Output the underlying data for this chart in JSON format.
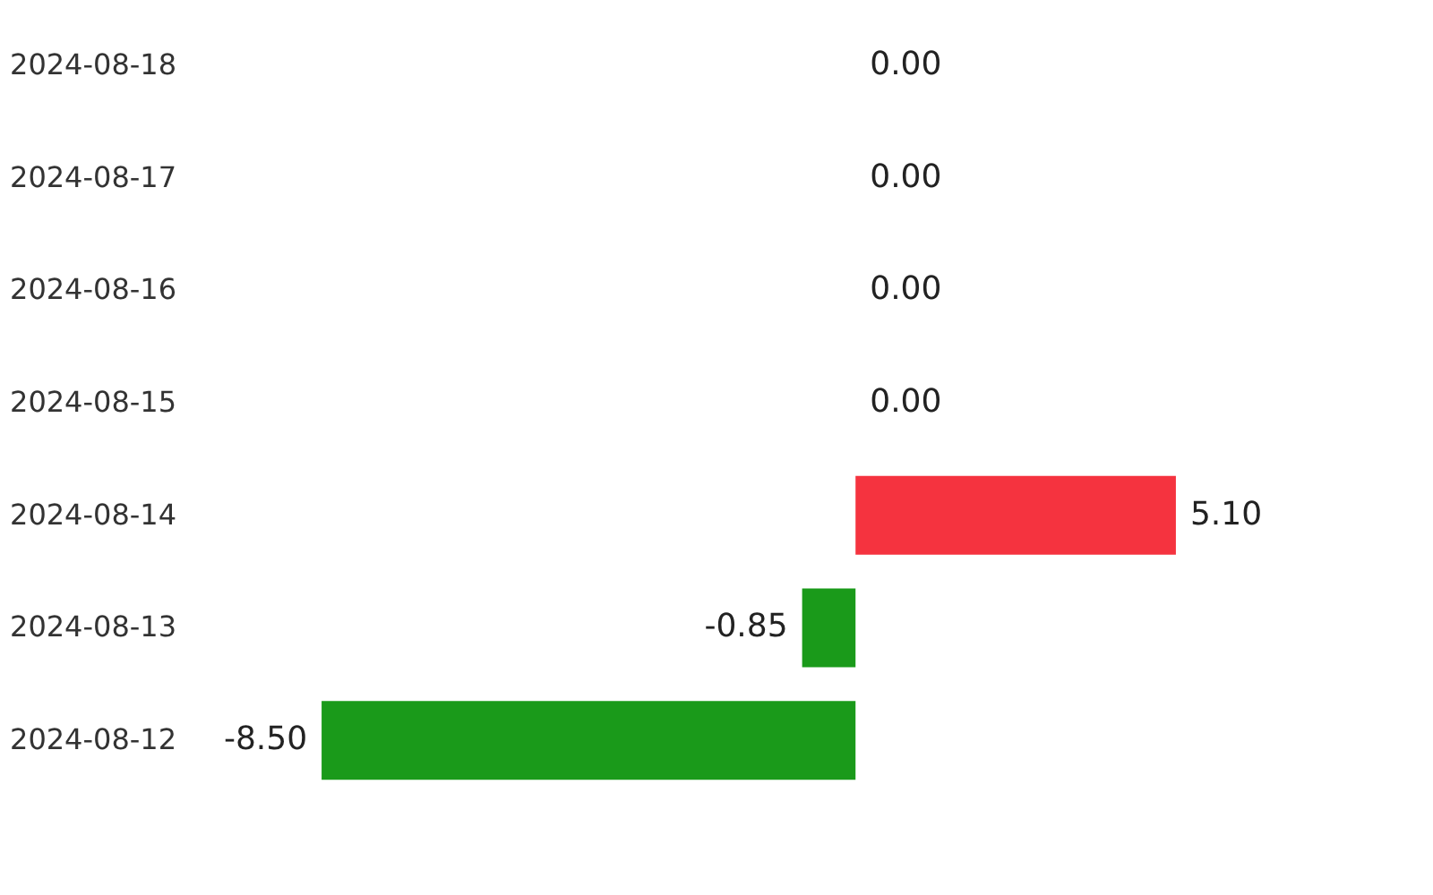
{
  "chart_data": {
    "type": "bar",
    "orientation": "horizontal",
    "categories": [
      "2024-08-18",
      "2024-08-17",
      "2024-08-16",
      "2024-08-15",
      "2024-08-14",
      "2024-08-13",
      "2024-08-12"
    ],
    "values": [
      0.0,
      0.0,
      0.0,
      0.0,
      5.1,
      -0.85,
      -8.5
    ],
    "value_labels": [
      "0.00",
      "0.00",
      "0.00",
      "0.00",
      "5.10",
      "-0.85",
      "-8.50"
    ],
    "colors": [
      "#9fa1ad",
      "#9fa1ad",
      "#9fa1ad",
      "#9fa1ad",
      "#f5333f",
      "#1a9a1a",
      "#1a9a1a"
    ]
  }
}
